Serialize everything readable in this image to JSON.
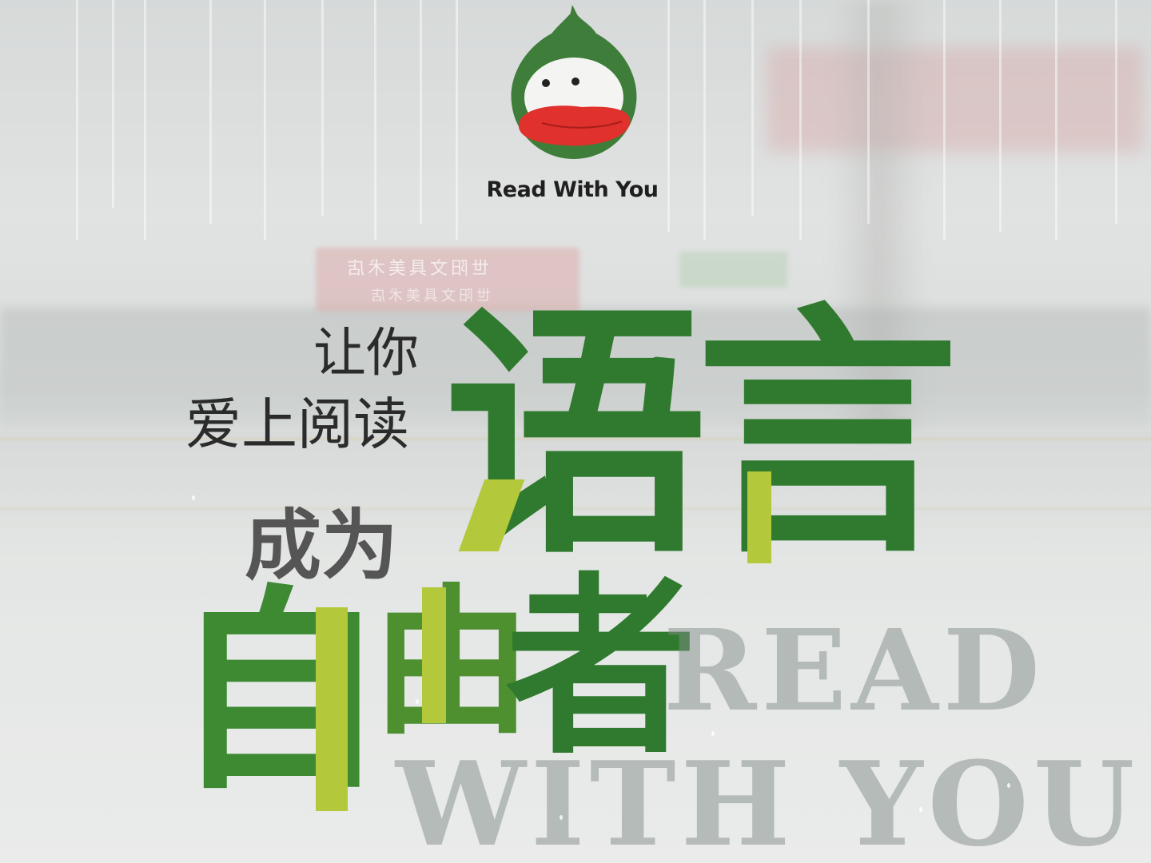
{
  "brand": {
    "name": "Read With You"
  },
  "slogan": {
    "line1": "让你",
    "line2": "爱上阅读",
    "line3": "成为"
  },
  "headline": {
    "char1": "语",
    "char2": "言",
    "char3": "自",
    "char4": "由",
    "char5": "者"
  },
  "watermark": {
    "line1": "READ",
    "line2": "WITH YOU"
  },
  "background": {
    "store_sign_line1": "世阳文具美术店",
    "store_sign_line2": "世阳文具美术店"
  },
  "colors": {
    "logo_green": "#3f7d3a",
    "logo_mouth": "#e0312c",
    "headline_green": "#2f7a2e",
    "accent_lime": "#b3c83a"
  }
}
